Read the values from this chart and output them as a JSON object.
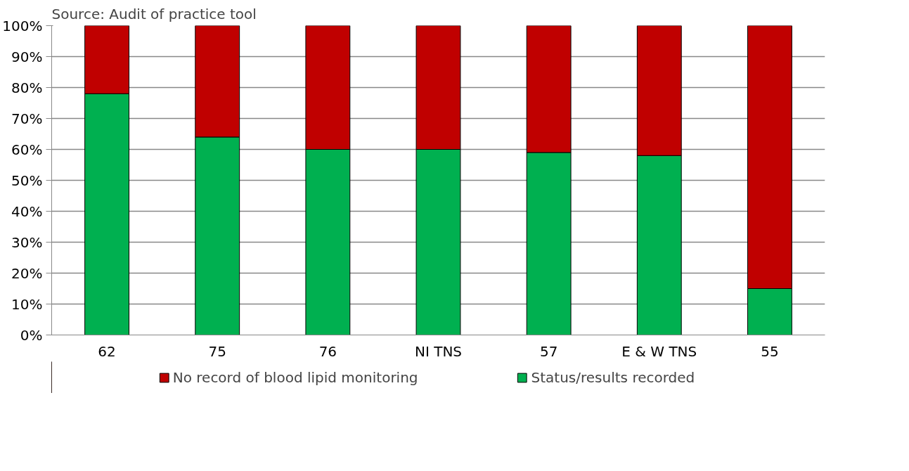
{
  "chart_data": {
    "type": "bar",
    "stacked": true,
    "annotations": [
      "Source: Audit of practice tool"
    ],
    "categories": [
      "62",
      "75",
      "76",
      "NI TNS",
      "57",
      "E & W TNS",
      "55"
    ],
    "series": [
      {
        "name": "Status/results recorded",
        "color": "#00b050",
        "values": [
          78,
          64,
          60,
          60,
          59,
          58,
          15
        ]
      },
      {
        "name": "No record of blood lipid monitoring",
        "color": "#c00000",
        "values": [
          22,
          36,
          40,
          40,
          41,
          42,
          85
        ]
      }
    ],
    "ylim": [
      0,
      100
    ],
    "yticks": [
      {
        "value": 0,
        "label": "0%"
      },
      {
        "value": 10,
        "label": "10%"
      },
      {
        "value": 20,
        "label": "20%"
      },
      {
        "value": 30,
        "label": "30%"
      },
      {
        "value": 40,
        "label": "40%"
      },
      {
        "value": 50,
        "label": "50%"
      },
      {
        "value": 60,
        "label": "60%"
      },
      {
        "value": 70,
        "label": "70%"
      },
      {
        "value": 80,
        "label": "80%"
      },
      {
        "value": 90,
        "label": "90%"
      },
      {
        "value": 100,
        "label": "100%"
      }
    ],
    "grid": "y",
    "legend": "bottom"
  }
}
